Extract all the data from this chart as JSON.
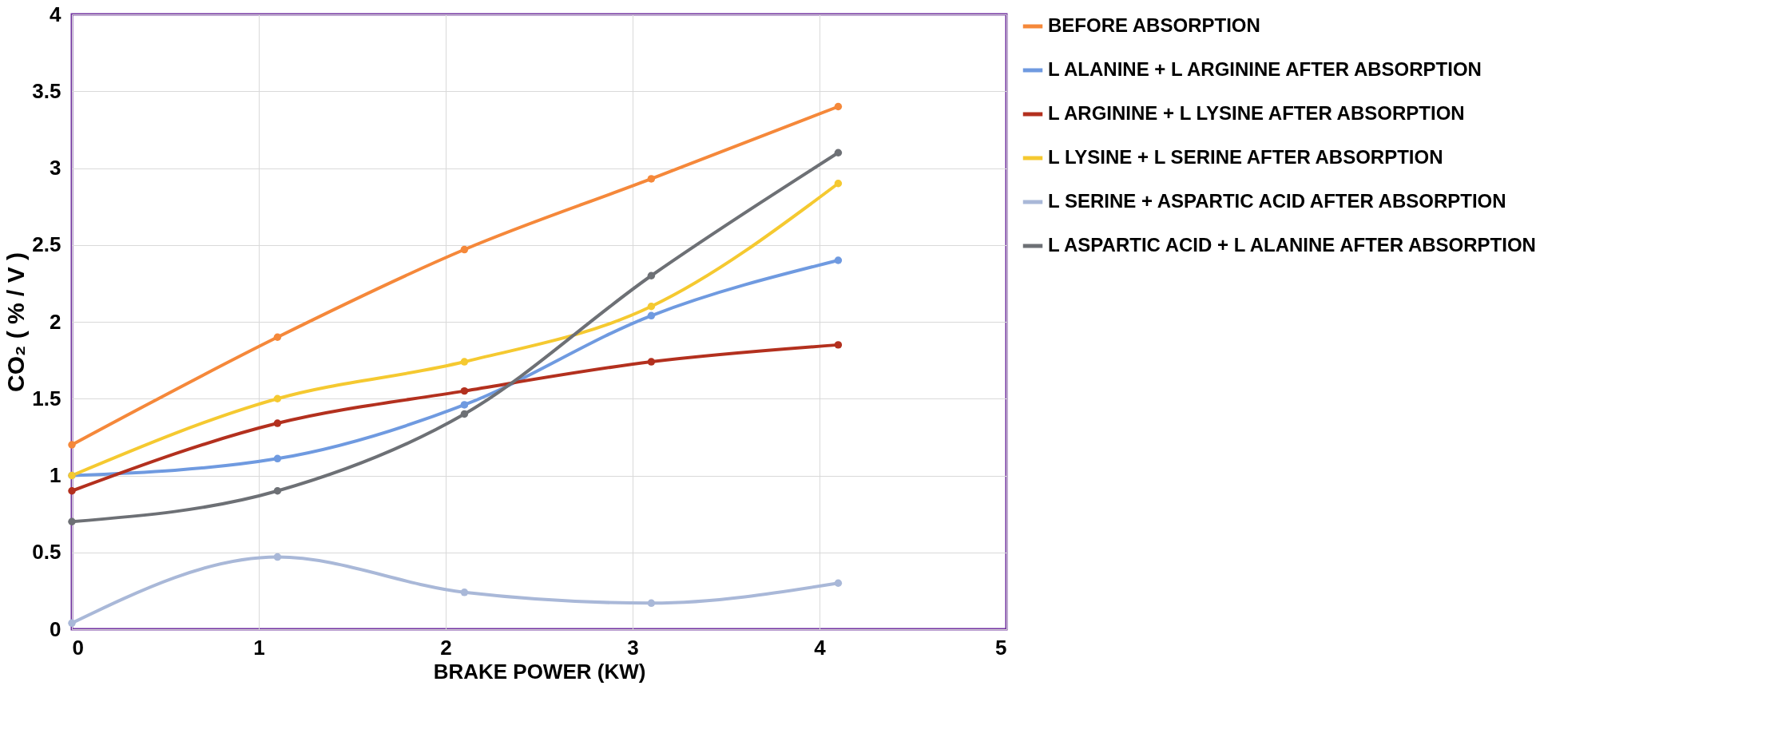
{
  "chart_data": {
    "type": "line",
    "xlabel": "BRAKE POWER (KW)",
    "ylabel": "CO₂ ( % / V )",
    "x": [
      0,
      1.1,
      2.1,
      3.1,
      4.1
    ],
    "xlim": [
      0,
      5
    ],
    "xticks": [
      0,
      1,
      2,
      3,
      4,
      5
    ],
    "ylim": [
      0,
      4
    ],
    "yticks": [
      0,
      0.5,
      1,
      1.5,
      2,
      2.5,
      3,
      3.5,
      4
    ],
    "grid": true,
    "legend": "right",
    "marker": "circle",
    "line_style": "solid",
    "series": [
      {
        "name": "BEFORE ABSORPTION",
        "color": "#f5883a",
        "values": [
          1.2,
          1.9,
          2.47,
          2.93,
          3.4
        ]
      },
      {
        "name": "L ALANINE + L ARGININE AFTER ABSORPTION",
        "color": "#6f9ae0",
        "values": [
          1.0,
          1.11,
          1.46,
          2.04,
          2.4
        ]
      },
      {
        "name": "L ARGININE + L LYSINE AFTER ABSORPTION",
        "color": "#b3301e",
        "values": [
          0.9,
          1.34,
          1.55,
          1.74,
          1.85
        ]
      },
      {
        "name": "L LYSINE + L SERINE AFTER ABSORPTION",
        "color": "#f5c930",
        "values": [
          1.0,
          1.5,
          1.74,
          2.1,
          2.9
        ]
      },
      {
        "name": "L SERINE + ASPARTIC ACID AFTER ABSORPTION",
        "color": "#a9b8d8",
        "values": [
          0.04,
          0.47,
          0.24,
          0.17,
          0.3
        ]
      },
      {
        "name": "L ASPARTIC ACID + L ALANINE AFTER ABSORPTION",
        "color": "#6d7075",
        "values": [
          0.7,
          0.9,
          1.4,
          2.3,
          3.1
        ]
      }
    ]
  }
}
